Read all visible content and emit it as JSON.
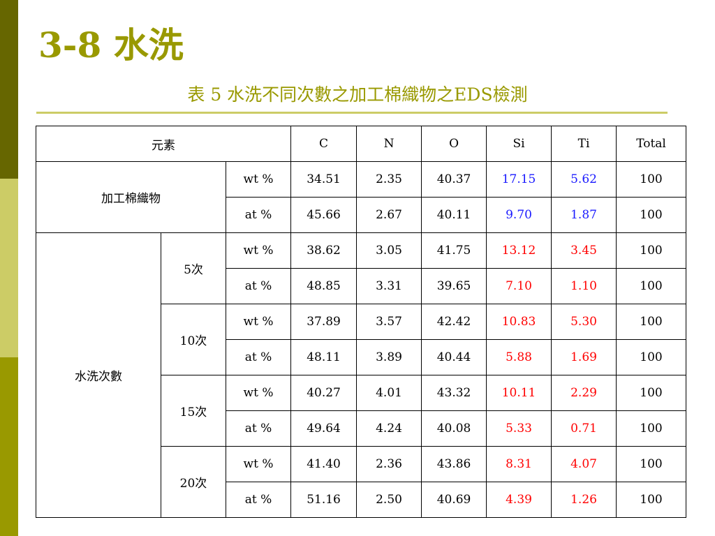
{
  "slide": {
    "title": "3-8 水洗",
    "table_caption": "表 5 水洗不同次數之加工棉織物之EDS檢測"
  },
  "colors": {
    "title": "#999900",
    "sidebar": [
      "#666600",
      "#cccc66",
      "#999900"
    ],
    "blue_values": "#1a1aff",
    "red_values": "#ff0000"
  },
  "table": {
    "header": {
      "element_label": "元素",
      "columns": [
        "C",
        "N",
        "O",
        "Si",
        "Ti",
        "Total"
      ]
    },
    "fabric": {
      "label": "加工棉織物",
      "rows": [
        {
          "unit": "wt %",
          "values": [
            "34.51",
            "2.35",
            "40.37",
            "17.15",
            "5.62",
            "100"
          ]
        },
        {
          "unit": "at %",
          "values": [
            "45.66",
            "2.67",
            "40.11",
            "9.70",
            "1.87",
            "100"
          ]
        }
      ]
    },
    "washing": {
      "label": "水洗次數",
      "groups": [
        {
          "count": "5次",
          "rows": [
            {
              "unit": "wt %",
              "values": [
                "38.62",
                "3.05",
                "41.75",
                "13.12",
                "3.45",
                "100"
              ]
            },
            {
              "unit": "at %",
              "values": [
                "48.85",
                "3.31",
                "39.65",
                "7.10",
                "1.10",
                "100"
              ]
            }
          ]
        },
        {
          "count": "10次",
          "rows": [
            {
              "unit": "wt %",
              "values": [
                "37.89",
                "3.57",
                "42.42",
                "10.83",
                "5.30",
                "100"
              ]
            },
            {
              "unit": "at %",
              "values": [
                "48.11",
                "3.89",
                "40.44",
                "5.88",
                "1.69",
                "100"
              ]
            }
          ]
        },
        {
          "count": "15次",
          "rows": [
            {
              "unit": "wt %",
              "values": [
                "40.27",
                "4.01",
                "43.32",
                "10.11",
                "2.29",
                "100"
              ]
            },
            {
              "unit": "at %",
              "values": [
                "49.64",
                "4.24",
                "40.08",
                "5.33",
                "0.71",
                "100"
              ]
            }
          ]
        },
        {
          "count": "20次",
          "rows": [
            {
              "unit": "wt %",
              "values": [
                "41.40",
                "2.36",
                "43.86",
                "8.31",
                "4.07",
                "100"
              ]
            },
            {
              "unit": "at %",
              "values": [
                "51.16",
                "2.50",
                "40.69",
                "4.39",
                "1.26",
                "100"
              ]
            }
          ]
        }
      ]
    }
  }
}
